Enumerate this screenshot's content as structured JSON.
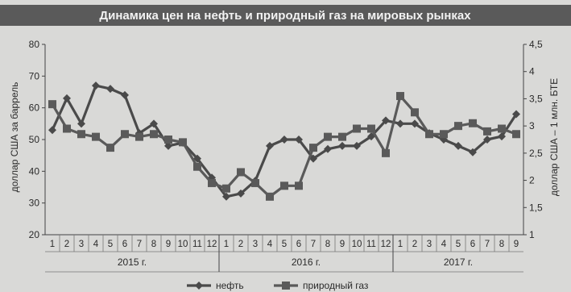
{
  "chart_data": {
    "type": "line",
    "title": "Динамика цен на нефть и природный газ на мировых рынках",
    "ylabel_left": "доллар США за баррель",
    "ylabel_right": "доллар США – 1 млн. БТЕ",
    "y_left": {
      "range": [
        20,
        80
      ],
      "ticks": [
        "20",
        "30",
        "40",
        "50",
        "60",
        "70",
        "80"
      ]
    },
    "y_right": {
      "range": [
        1,
        4.5
      ],
      "ticks": [
        "1",
        "1,5",
        "2",
        "2,5",
        "3",
        "3,5",
        "4",
        "4,5"
      ]
    },
    "categories": [
      "1",
      "2",
      "3",
      "4",
      "5",
      "6",
      "7",
      "8",
      "9",
      "10",
      "11",
      "12",
      "1",
      "2",
      "3",
      "4",
      "5",
      "6",
      "7",
      "8",
      "9",
      "10",
      "11",
      "12",
      "1",
      "2",
      "3",
      "4",
      "5",
      "6",
      "7",
      "8",
      "9"
    ],
    "year_groups": [
      {
        "label": "2015 г.",
        "count": 12
      },
      {
        "label": "2016 г.",
        "count": 12
      },
      {
        "label": "2017 г.",
        "count": 9
      }
    ],
    "series": [
      {
        "name": "нефть",
        "axis": "left",
        "color": "#4a4a4a",
        "marker": "diamond",
        "values": [
          53,
          63,
          55,
          67,
          66,
          64,
          52,
          55,
          48,
          49,
          44,
          38,
          32,
          33,
          37,
          48,
          50,
          50,
          44,
          47,
          48,
          48,
          51,
          56,
          55,
          55,
          52,
          50,
          48,
          46,
          50,
          51,
          58
        ]
      },
      {
        "name": "природный газ",
        "axis": "right",
        "color": "#5a5a5a",
        "marker": "square",
        "values": [
          3.4,
          2.95,
          2.85,
          2.8,
          2.6,
          2.85,
          2.8,
          2.85,
          2.75,
          2.7,
          2.25,
          1.95,
          1.85,
          2.15,
          1.95,
          1.7,
          1.9,
          1.9,
          2.6,
          2.8,
          2.8,
          2.95,
          2.95,
          2.5,
          3.55,
          3.25,
          2.85,
          2.85,
          3.0,
          3.05,
          2.9,
          2.95,
          2.85
        ]
      }
    ],
    "legend": {
      "position": "bottom-center"
    },
    "grid": false
  }
}
